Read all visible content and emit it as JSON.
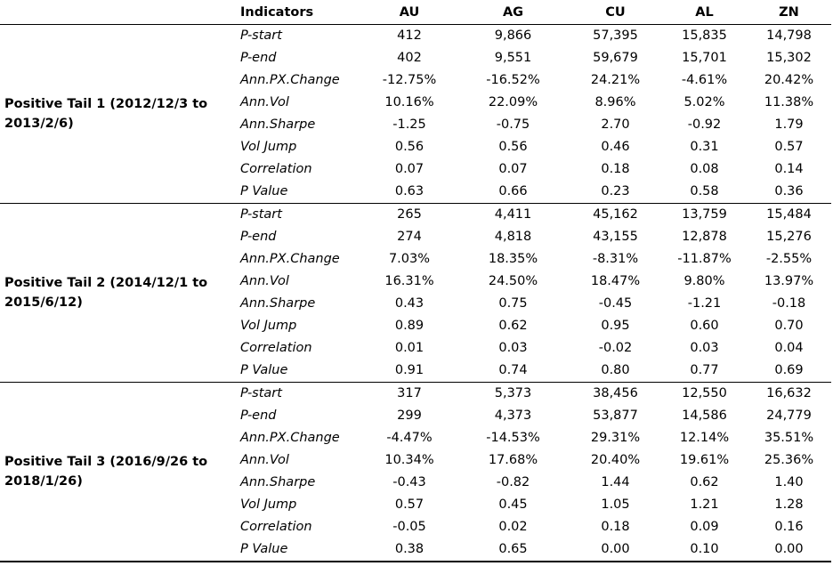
{
  "header": {
    "indicators_label": "Indicators",
    "columns": [
      "AU",
      "AG",
      "CU",
      "AL",
      "ZN"
    ]
  },
  "groups": [
    {
      "label": "Positive Tail 1 (2012/12/3 to 2013/2/6)",
      "rows": [
        {
          "indicator": "P-start",
          "values": [
            "412",
            "9,866",
            "57,395",
            "15,835",
            "14,798"
          ]
        },
        {
          "indicator": "P-end",
          "values": [
            "402",
            "9,551",
            "59,679",
            "15,701",
            "15,302"
          ]
        },
        {
          "indicator": "Ann.PX.Change",
          "values": [
            "-12.75%",
            "-16.52%",
            "24.21%",
            "-4.61%",
            "20.42%"
          ]
        },
        {
          "indicator": "Ann.Vol",
          "values": [
            "10.16%",
            "22.09%",
            "8.96%",
            "5.02%",
            "11.38%"
          ]
        },
        {
          "indicator": "Ann.Sharpe",
          "values": [
            "-1.25",
            "-0.75",
            "2.70",
            "-0.92",
            "1.79"
          ]
        },
        {
          "indicator": "Vol Jump",
          "values": [
            "0.56",
            "0.56",
            "0.46",
            "0.31",
            "0.57"
          ]
        },
        {
          "indicator": "Correlation",
          "values": [
            "0.07",
            "0.07",
            "0.18",
            "0.08",
            "0.14"
          ]
        },
        {
          "indicator": "P Value",
          "values": [
            "0.63",
            "0.66",
            "0.23",
            "0.58",
            "0.36"
          ]
        }
      ]
    },
    {
      "label": "Positive Tail 2 (2014/12/1 to 2015/6/12)",
      "rows": [
        {
          "indicator": "P-start",
          "values": [
            "265",
            "4,411",
            "45,162",
            "13,759",
            "15,484"
          ]
        },
        {
          "indicator": "P-end",
          "values": [
            "274",
            "4,818",
            "43,155",
            "12,878",
            "15,276"
          ]
        },
        {
          "indicator": "Ann.PX.Change",
          "values": [
            "7.03%",
            "18.35%",
            "-8.31%",
            "-11.87%",
            "-2.55%"
          ]
        },
        {
          "indicator": "Ann.Vol",
          "values": [
            "16.31%",
            "24.50%",
            "18.47%",
            "9.80%",
            "13.97%"
          ]
        },
        {
          "indicator": "Ann.Sharpe",
          "values": [
            "0.43",
            "0.75",
            "-0.45",
            "-1.21",
            "-0.18"
          ]
        },
        {
          "indicator": "Vol Jump",
          "values": [
            "0.89",
            "0.62",
            "0.95",
            "0.60",
            "0.70"
          ]
        },
        {
          "indicator": "Correlation",
          "values": [
            "0.01",
            "0.03",
            "-0.02",
            "0.03",
            "0.04"
          ]
        },
        {
          "indicator": "P Value",
          "values": [
            "0.91",
            "0.74",
            "0.80",
            "0.77",
            "0.69"
          ]
        }
      ]
    },
    {
      "label": "Positive Tail 3 (2016/9/26 to 2018/1/26)",
      "rows": [
        {
          "indicator": "P-start",
          "values": [
            "317",
            "5,373",
            "38,456",
            "12,550",
            "16,632"
          ]
        },
        {
          "indicator": "P-end",
          "values": [
            "299",
            "4,373",
            "53,877",
            "14,586",
            "24,779"
          ]
        },
        {
          "indicator": "Ann.PX.Change",
          "values": [
            "-4.47%",
            "-14.53%",
            "29.31%",
            "12.14%",
            "35.51%"
          ]
        },
        {
          "indicator": "Ann.Vol",
          "values": [
            "10.34%",
            "17.68%",
            "20.40%",
            "19.61%",
            "25.36%"
          ]
        },
        {
          "indicator": "Ann.Sharpe",
          "values": [
            "-0.43",
            "-0.82",
            "1.44",
            "0.62",
            "1.40"
          ]
        },
        {
          "indicator": "Vol Jump",
          "values": [
            "0.57",
            "0.45",
            "1.05",
            "1.21",
            "1.28"
          ]
        },
        {
          "indicator": "Correlation",
          "values": [
            "-0.05",
            "0.02",
            "0.18",
            "0.09",
            "0.16"
          ]
        },
        {
          "indicator": "P Value",
          "values": [
            "0.38",
            "0.65",
            "0.00",
            "0.10",
            "0.00"
          ]
        }
      ]
    }
  ]
}
